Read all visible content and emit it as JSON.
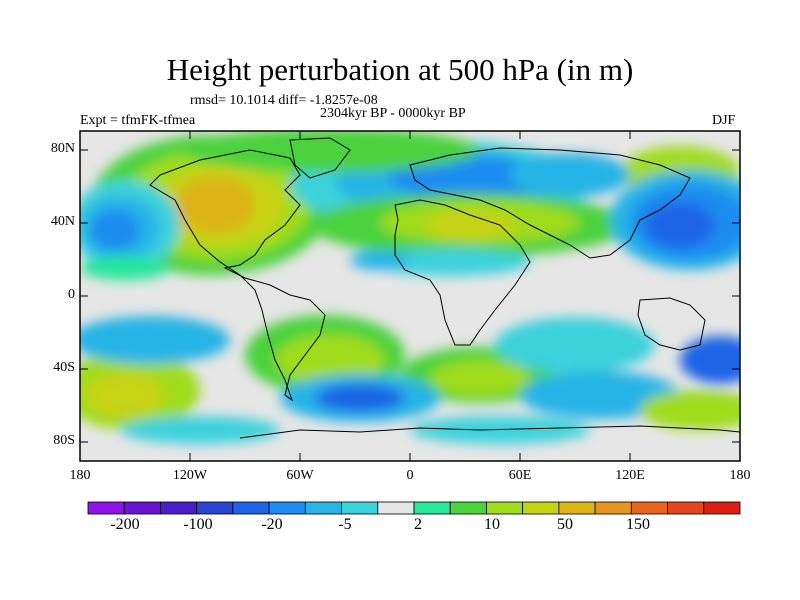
{
  "title": "Height perturbation at 500 hPa (in m)",
  "stats": "rmsd= 10.1014 diff= -1.8257e-08",
  "left_label": "Expt = tfmFK-tfmea",
  "center_label": "2304kyr BP - 0000kyr BP",
  "right_label": "DJF",
  "y_ticks": [
    "80N",
    "40N",
    "0",
    "40S",
    "80S"
  ],
  "x_ticks": [
    "180",
    "120W",
    "60W",
    "0",
    "60E",
    "120E",
    "180"
  ],
  "colorbar": {
    "colors": [
      "#8c14e6",
      "#6a14d2",
      "#4a1ec8",
      "#2846d2",
      "#1e64e6",
      "#1e8cf0",
      "#28b4e6",
      "#3cd2dc",
      "#e6e6e6",
      "#28e69b",
      "#4bd23c",
      "#a0dc1e",
      "#c8d214",
      "#dcb414",
      "#e6961e",
      "#e6641e",
      "#e6461e",
      "#dc1e14"
    ],
    "labels": [
      "-200",
      "-100",
      "-20",
      "-5",
      "2",
      "10",
      "50",
      "150"
    ]
  },
  "map_extent": {
    "lon": [
      -180,
      180
    ],
    "lat": [
      -90,
      90
    ]
  }
}
